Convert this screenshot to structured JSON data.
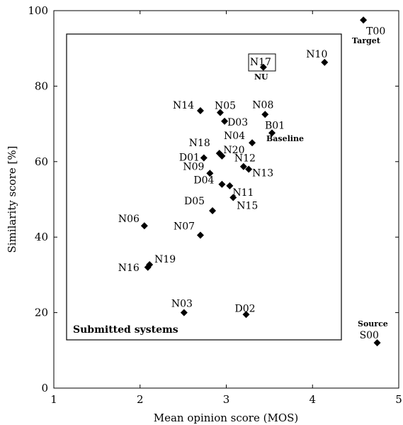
{
  "chart_data": {
    "type": "scatter",
    "xlabel": "Mean opinion score (MOS)",
    "ylabel": "Similarity score [%]",
    "xlim": [
      1,
      5
    ],
    "ylim": [
      0,
      100
    ],
    "xticks": [
      "1",
      "2",
      "3",
      "4",
      "5"
    ],
    "yticks": [
      "0",
      "20",
      "40",
      "60",
      "80",
      "100"
    ],
    "grid": false,
    "points": [
      {
        "label": "T00",
        "x": 4.59,
        "y": 97.5
      },
      {
        "label": "S00",
        "x": 4.75,
        "y": 12.0
      },
      {
        "label": "N10",
        "x": 4.14,
        "y": 86.3
      },
      {
        "label": "N17",
        "x": 3.43,
        "y": 85.0
      },
      {
        "label": "N14",
        "x": 2.7,
        "y": 73.5
      },
      {
        "label": "N05",
        "x": 2.93,
        "y": 73.0
      },
      {
        "label": "D03",
        "x": 2.98,
        "y": 70.7
      },
      {
        "label": "N08",
        "x": 3.45,
        "y": 72.5
      },
      {
        "label": "B01",
        "x": 3.53,
        "y": 67.6
      },
      {
        "label": "N04",
        "x": 3.3,
        "y": 65.0
      },
      {
        "label": "N18",
        "x": 2.92,
        "y": 62.2
      },
      {
        "label": "N20",
        "x": 2.95,
        "y": 61.5
      },
      {
        "label": "D01",
        "x": 2.74,
        "y": 61.0
      },
      {
        "label": "N12",
        "x": 3.2,
        "y": 58.7
      },
      {
        "label": "N13",
        "x": 3.26,
        "y": 58.0
      },
      {
        "label": "N09",
        "x": 2.81,
        "y": 56.9
      },
      {
        "label": "D04",
        "x": 2.95,
        "y": 54.0
      },
      {
        "label": "N11",
        "x": 3.04,
        "y": 53.6
      },
      {
        "label": "N15",
        "x": 3.08,
        "y": 50.5
      },
      {
        "label": "D05",
        "x": 2.84,
        "y": 47.0
      },
      {
        "label": "N06",
        "x": 2.05,
        "y": 43.0
      },
      {
        "label": "N07",
        "x": 2.7,
        "y": 40.5
      },
      {
        "label": "N19",
        "x": 2.11,
        "y": 32.7
      },
      {
        "label": "N16",
        "x": 2.09,
        "y": 32.0
      },
      {
        "label": "N03",
        "x": 2.51,
        "y": 20.0
      },
      {
        "label": "D02",
        "x": 3.23,
        "y": 19.5
      }
    ],
    "annotations": {
      "target": "Target",
      "source": "Source",
      "nu": "NU",
      "baseline": "Baseline",
      "submitted": "Submitted systems"
    },
    "highlighted_point": "N17"
  }
}
